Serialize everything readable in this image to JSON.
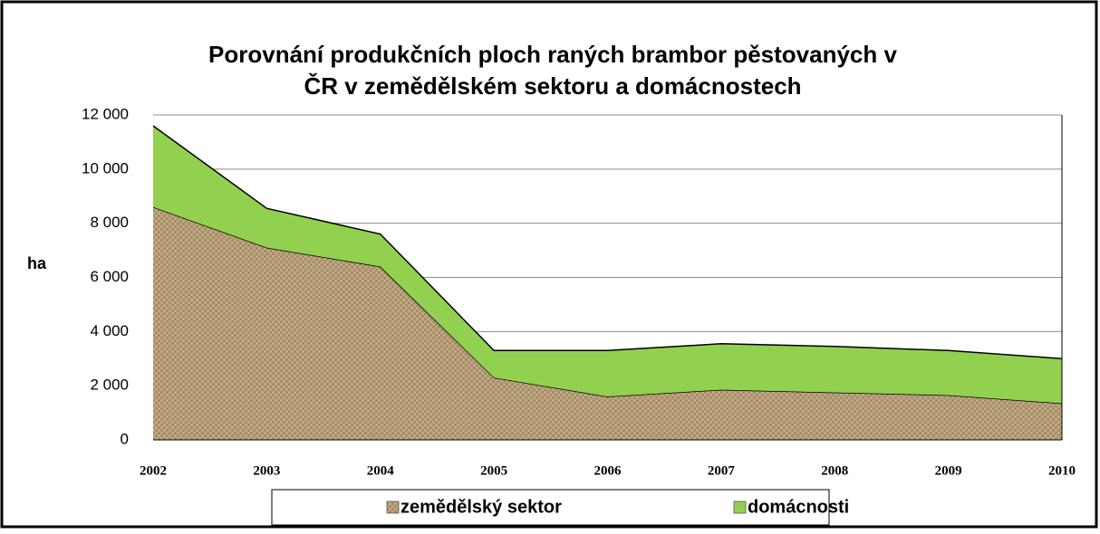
{
  "chart_data": {
    "type": "stacked_area",
    "title": "Porovnání produkčních ploch raných brambor pěstovaných v ČR v zemědělském sektoru a domácnostech",
    "title_lines": [
      "Porovnání produkčních ploch raných brambor pěstovaných v",
      "ČR v zemědělském sektoru a domácnostech"
    ],
    "y_label": "ha",
    "categories": [
      "2002",
      "2003",
      "2004",
      "2005",
      "2006",
      "2007",
      "2008",
      "2009",
      "2010"
    ],
    "series": [
      {
        "name": "zemědělský sektor",
        "color": "#b59d76",
        "values": [
          8600,
          7100,
          6400,
          2300,
          1600,
          1850,
          1750,
          1650,
          1350
        ]
      },
      {
        "name": "domácnosti",
        "color": "#92d050",
        "values": [
          3000,
          1450,
          1200,
          1000,
          1700,
          1700,
          1700,
          1650,
          1650
        ]
      }
    ],
    "ylim": [
      0,
      12000
    ],
    "yticks": [
      0,
      {
        "value": 2000,
        "label": "2 000"
      },
      {
        "value": 4000,
        "label": "4 000"
      },
      {
        "value": 6000,
        "label": "6 000"
      },
      {
        "value": 8000,
        "label": "8 000"
      },
      {
        "value": 10000,
        "label": "10 000"
      },
      {
        "value": 12000,
        "label": "12 000"
      }
    ],
    "grid": true,
    "legend": "bottom"
  }
}
